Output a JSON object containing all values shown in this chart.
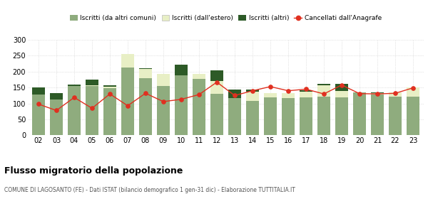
{
  "years": [
    "02",
    "03",
    "04",
    "05",
    "06",
    "07",
    "08",
    "09",
    "10",
    "11",
    "12",
    "13",
    "14",
    "15",
    "16",
    "17",
    "18",
    "19",
    "20",
    "21",
    "22",
    "23"
  ],
  "iscritti_comuni": [
    128,
    112,
    155,
    155,
    148,
    214,
    180,
    155,
    188,
    178,
    130,
    117,
    108,
    120,
    118,
    120,
    122,
    120,
    135,
    128,
    122,
    122
  ],
  "iscritti_estero": [
    0,
    0,
    0,
    2,
    5,
    42,
    28,
    38,
    0,
    15,
    40,
    0,
    30,
    13,
    15,
    18,
    35,
    20,
    0,
    5,
    12,
    28
  ],
  "iscritti_altri": [
    22,
    20,
    5,
    18,
    5,
    0,
    3,
    0,
    33,
    0,
    35,
    26,
    5,
    0,
    0,
    3,
    5,
    22,
    0,
    2,
    0,
    0
  ],
  "cancellati": [
    98,
    78,
    119,
    85,
    130,
    93,
    132,
    106,
    113,
    128,
    167,
    125,
    140,
    153,
    140,
    145,
    130,
    158,
    131,
    130,
    132,
    149
  ],
  "color_comuni": "#8fac7e",
  "color_estero": "#e8efc5",
  "color_altri": "#2d5a27",
  "color_cancellati": "#e03020",
  "ylim": [
    0,
    300
  ],
  "yticks": [
    0,
    50,
    100,
    150,
    200,
    250,
    300
  ],
  "title": "Flusso migratorio della popolazione",
  "subtitle": "COMUNE DI LAGOSANTO (FE) - Dati ISTAT (bilancio demografico 1 gen-31 dic) - Elaborazione TUTTITALIA.IT",
  "legend_labels": [
    "Iscritti (da altri comuni)",
    "Iscritti (dall'estero)",
    "Iscritti (altri)",
    "Cancellati dall'Anagrafe"
  ],
  "bg_color": "#ffffff",
  "grid_color": "#cccccc"
}
